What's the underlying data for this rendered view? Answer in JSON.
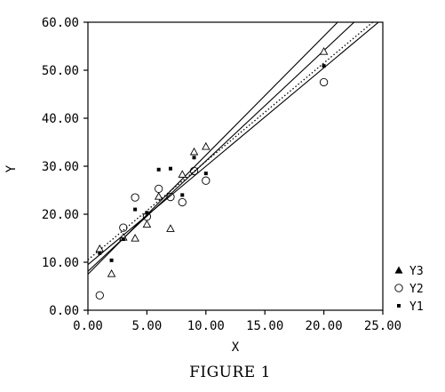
{
  "chart_data": {
    "type": "scatter",
    "xlabel": "X",
    "ylabel": "Y",
    "caption": "FIGURE 1",
    "xlim": [
      0,
      25
    ],
    "ylim": [
      0,
      60
    ],
    "x_ticks": [
      "0.00",
      "5.00",
      "10.00",
      "15.00",
      "20.00",
      "25.00"
    ],
    "y_ticks": [
      "0.00",
      "10.00",
      "20.00",
      "30.00",
      "40.00",
      "50.00",
      "60.00"
    ],
    "grid": false,
    "legend_position": "right",
    "series": [
      {
        "name": "Y3",
        "marker": "open-triangle",
        "points": [
          [
            1,
            12.8
          ],
          [
            2,
            7.6
          ],
          [
            3,
            15.2
          ],
          [
            4,
            15.0
          ],
          [
            5,
            17.9
          ],
          [
            6,
            23.7
          ],
          [
            7,
            17.0
          ],
          [
            8,
            28.3
          ],
          [
            9,
            33.0
          ],
          [
            10,
            34.1
          ],
          [
            20,
            53.9
          ]
        ],
        "fit": {
          "style": "solid",
          "intercept": 8.1,
          "slope": 2.3
        }
      },
      {
        "name": "Y2",
        "marker": "open-circle",
        "points": [
          [
            1,
            3.1
          ],
          [
            3,
            17.2
          ],
          [
            4,
            23.5
          ],
          [
            5,
            19.5
          ],
          [
            6,
            25.3
          ],
          [
            7,
            23.6
          ],
          [
            8,
            22.5
          ],
          [
            9,
            29.0
          ],
          [
            10,
            27.0
          ],
          [
            20,
            47.5
          ]
        ],
        "fit": {
          "style": "solid",
          "intercept": 9.5,
          "slope": 2.05
        }
      },
      {
        "name": "Y1",
        "marker": "filled-square",
        "points": [
          [
            1,
            11.9
          ],
          [
            2,
            10.4
          ],
          [
            3,
            14.8
          ],
          [
            4,
            21.0
          ],
          [
            5,
            20.3
          ],
          [
            6,
            29.3
          ],
          [
            7,
            29.5
          ],
          [
            8,
            24.0
          ],
          [
            9,
            31.8
          ],
          [
            10,
            28.5
          ],
          [
            20,
            50.9
          ]
        ],
        "fit": {
          "style": "dotted",
          "intercept": 10.5,
          "slope": 2.05
        }
      }
    ],
    "extra_lines": [
      {
        "style": "solid",
        "intercept": 7.5,
        "slope": 2.48
      }
    ]
  }
}
